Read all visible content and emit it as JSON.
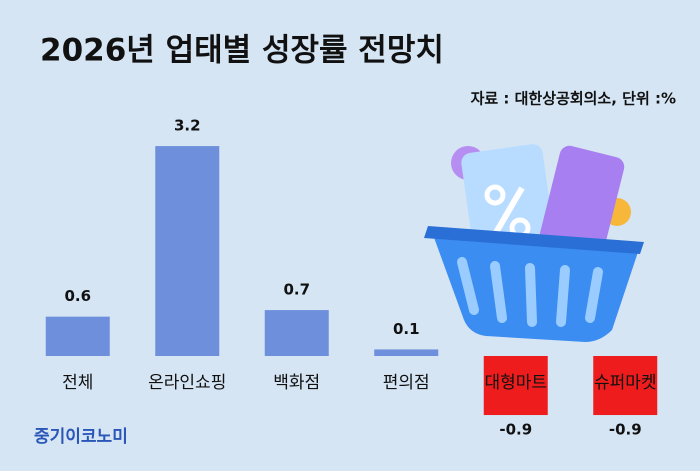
{
  "chart_data": {
    "type": "bar",
    "title": "2026년 업태별 성장률 전망치",
    "source": "자료 : 대한상공회의소, 단위 :%",
    "categories": [
      "전체",
      "온라인쇼핑",
      "백화점",
      "편의점",
      "대형마트",
      "슈퍼마켓"
    ],
    "values": [
      0.6,
      3.2,
      0.7,
      0.1,
      -0.9,
      -0.9
    ],
    "colors": [
      "#6e8fdc",
      "#6e8fdc",
      "#6e8fdc",
      "#6e8fdc",
      "#ee1c1c",
      "#ee1c1c"
    ],
    "brand": "중기이코노미"
  }
}
